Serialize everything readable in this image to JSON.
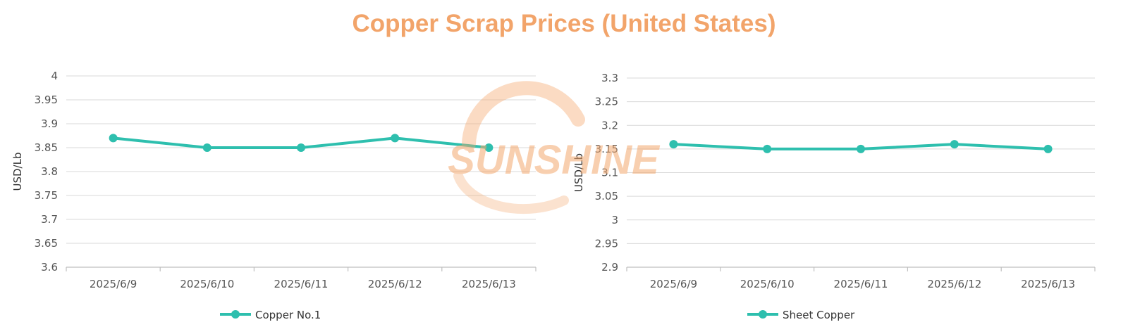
{
  "title": "Copper Scrap Prices (United States)",
  "watermark": "SUNSHINE",
  "colors": {
    "title": "#F2A46A",
    "series": "#2EBFAE",
    "grid": "#D9D9D9",
    "axis": "#BFBFBF",
    "watermark": "#F4A86E"
  },
  "chart_data": [
    {
      "type": "line",
      "ylabel": "USD/Lb",
      "ylim": [
        3.6,
        4
      ],
      "yticks": [
        "3.6",
        "3.65",
        "3.7",
        "3.75",
        "3.8",
        "3.85",
        "3.9",
        "3.95",
        "4"
      ],
      "categories": [
        "2025/6/9",
        "2025/6/10",
        "2025/6/11",
        "2025/6/12",
        "2025/6/13"
      ],
      "series": [
        {
          "name": "Copper No.1",
          "values": [
            3.87,
            3.85,
            3.85,
            3.87,
            3.85
          ]
        }
      ],
      "grid": true,
      "legend": "bottom"
    },
    {
      "type": "line",
      "ylabel": "USD/Lb",
      "ylim": [
        2.9,
        3.3
      ],
      "yticks": [
        "2.9",
        "2.95",
        "3",
        "3.05",
        "3.1",
        "3.15",
        "3.2",
        "3.25",
        "3.3"
      ],
      "categories": [
        "2025/6/9",
        "2025/6/10",
        "2025/6/11",
        "2025/6/12",
        "2025/6/13"
      ],
      "series": [
        {
          "name": "Sheet Copper",
          "values": [
            3.16,
            3.15,
            3.15,
            3.16,
            3.15
          ]
        }
      ],
      "grid": true,
      "legend": "bottom"
    }
  ]
}
